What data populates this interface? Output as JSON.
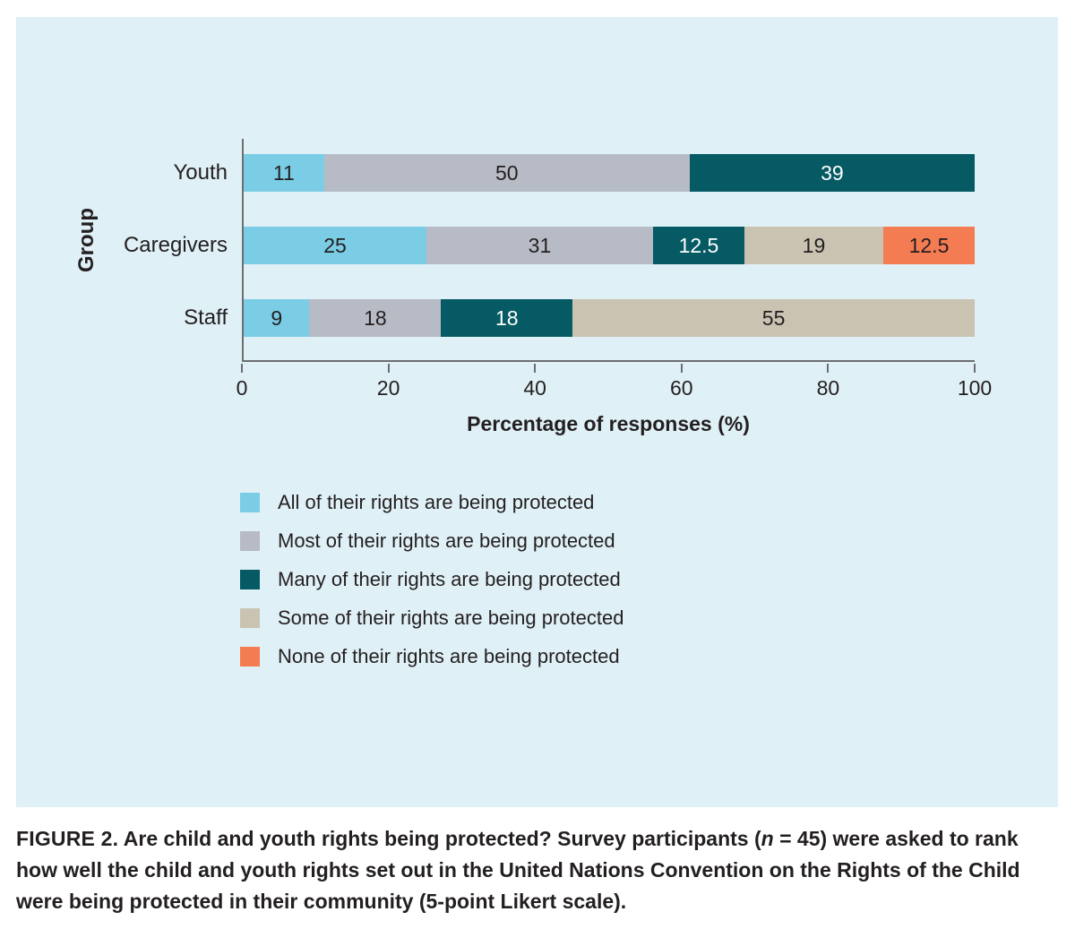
{
  "colors": {
    "panel_bg": "#DFF0F6",
    "axis": "#6D6E71",
    "text": "#231F20"
  },
  "chart_data": {
    "type": "bar",
    "orientation": "horizontal",
    "stacked": true,
    "title": "",
    "xlabel": "Percentage of responses (%)",
    "ylabel": "Group",
    "xlim": [
      0,
      100
    ],
    "xticks": [
      "0",
      "20",
      "40",
      "60",
      "80",
      "100"
    ],
    "grid": "off",
    "legend_position": "bottom-left",
    "categories": [
      "Youth",
      "Caregivers",
      "Staff"
    ],
    "series": [
      {
        "name": "All of their rights are being protected",
        "color": "#7BCDE5",
        "label_color": "#231F20",
        "values": [
          11,
          25,
          9
        ]
      },
      {
        "name": "Most of their rights are being protected",
        "color": "#B7BBC5",
        "label_color": "#231F20",
        "values": [
          50,
          31,
          18
        ]
      },
      {
        "name": "Many of their rights are being protected",
        "color": "#065A64",
        "label_color": "#FFFFFF",
        "values": [
          39,
          12.5,
          18
        ]
      },
      {
        "name": "Some of their rights are being protected",
        "color": "#CAC3B2",
        "label_color": "#231F20",
        "values": [
          0,
          19,
          55
        ]
      },
      {
        "name": "None of their rights are being protected",
        "color": "#F47C52",
        "label_color": "#231F20",
        "values": [
          0,
          12.5,
          0
        ]
      }
    ]
  },
  "caption": {
    "label": "FIGURE 2.",
    "before_n": " Are child and youth rights being protected? Survey participants (",
    "n": "n",
    "after_n": " = 45) were asked to rank how well the child and youth rights set out in the United Nations Convention on the Rights of the Child were being protected in their community (5-point Likert scale)."
  }
}
